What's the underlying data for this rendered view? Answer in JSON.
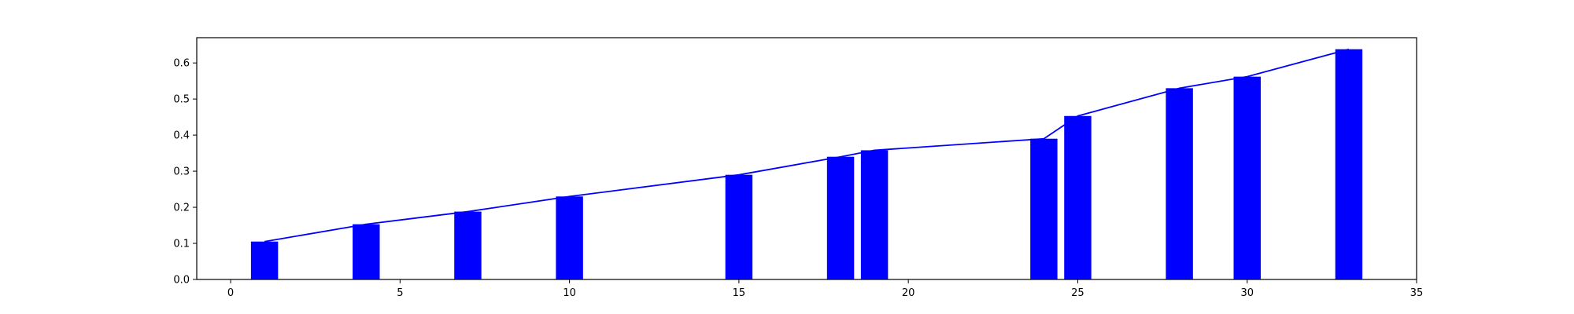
{
  "chart_data": {
    "type": "bar",
    "title": "",
    "xlabel": "",
    "ylabel": "",
    "xlim": [
      -1,
      35
    ],
    "ylim": [
      0,
      0.67
    ],
    "x_ticks": [
      0,
      5,
      10,
      15,
      20,
      25,
      30,
      35
    ],
    "x_tick_labels": [
      "0",
      "5",
      "10",
      "15",
      "20",
      "25",
      "30",
      "35"
    ],
    "y_ticks": [
      0.0,
      0.1,
      0.2,
      0.3,
      0.4,
      0.5,
      0.6
    ],
    "y_tick_labels": [
      "0.0",
      "0.1",
      "0.2",
      "0.3",
      "0.4",
      "0.5",
      "0.6"
    ],
    "bar_width": 0.8,
    "grid": false,
    "series": [
      {
        "type": "bar",
        "color": "#0000ff",
        "x": [
          1,
          4,
          7,
          10,
          15,
          18,
          19,
          24,
          25,
          28,
          30,
          33
        ],
        "values": [
          0.105,
          0.153,
          0.188,
          0.23,
          0.29,
          0.34,
          0.358,
          0.39,
          0.453,
          0.53,
          0.562,
          0.638
        ]
      },
      {
        "type": "line",
        "color": "#0000ff",
        "x": [
          1,
          4,
          7,
          10,
          15,
          18,
          19,
          24,
          25,
          28,
          30,
          33
        ],
        "values": [
          0.105,
          0.153,
          0.188,
          0.23,
          0.29,
          0.34,
          0.358,
          0.39,
          0.453,
          0.53,
          0.562,
          0.638
        ]
      }
    ]
  }
}
